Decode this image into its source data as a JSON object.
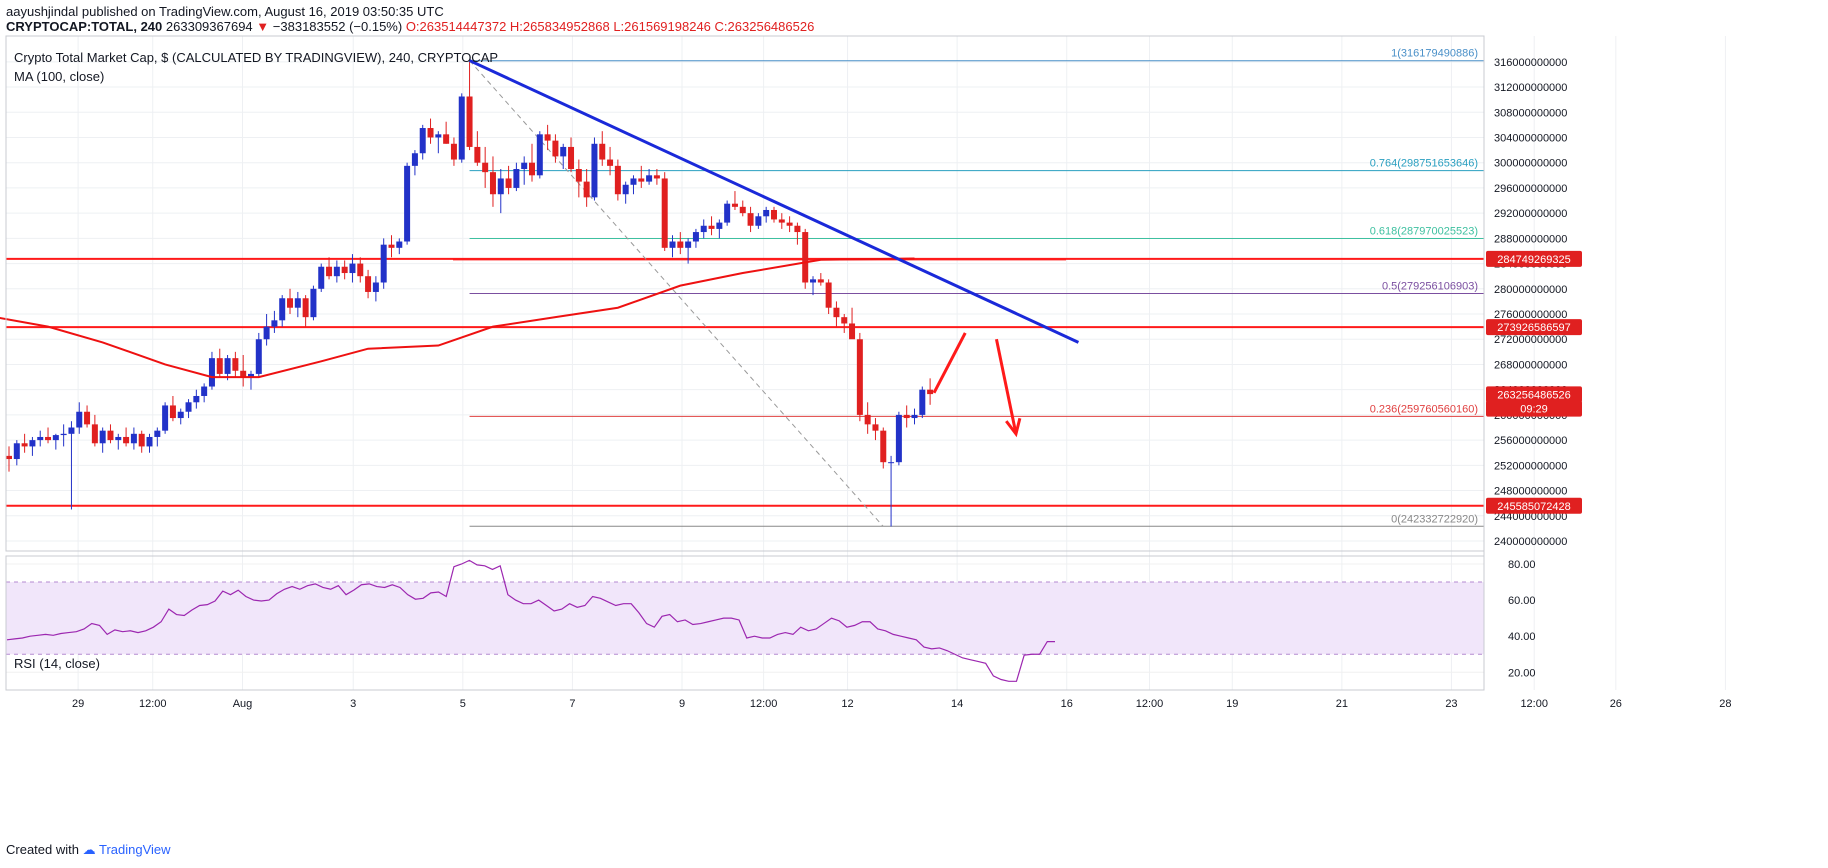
{
  "header": {
    "published": "aayushjindal published on TradingView.com, August 16, 2019 03:50:35 UTC",
    "symbol": "CRYPTOCAP:TOTAL, 240",
    "last": "263309367694",
    "change_arrow": "▼",
    "change": "−383183552 (−0.15%)",
    "open": "O:263514447372",
    "high": "H:265834952868",
    "low": "L:261569198246",
    "close": "C:263256486526"
  },
  "footer": {
    "created_with": "Created with",
    "brand": "TradingView"
  },
  "colors": {
    "bull": "#2232c8",
    "bear": "#e02020",
    "ma": "#ee1111",
    "trend": "#1a29d9",
    "rsi": "#9c27b0",
    "rsi_band": "#f1e6fa"
  },
  "chart_data": {
    "type": "candlestick",
    "title": "Crypto Total Market Cap, $ (CALCULATED BY TRADINGVIEW), 240, CRYPTOCAP",
    "indicator_label": "MA (100, close)",
    "ylim": [
      238000000000,
      318000000000
    ],
    "y_ticks": [
      "316000000000",
      "312000000000",
      "308000000000",
      "304000000000",
      "300000000000",
      "296000000000",
      "292000000000",
      "288000000000",
      "284000000000",
      "280000000000",
      "276000000000",
      "272000000000",
      "268000000000",
      "264000000000",
      "260000000000",
      "256000000000",
      "252000000000",
      "248000000000",
      "244000000000",
      "240000000000"
    ],
    "x_ticks": [
      "29",
      "12:00",
      "Aug",
      "3",
      "5",
      "7",
      "9",
      "12:00",
      "12",
      "14",
      "16",
      "12:00",
      "19",
      "21",
      "23",
      "12:00",
      "26",
      "28"
    ],
    "price_badges": [
      {
        "label": "284749269325",
        "value": 284749269325,
        "color": "#e02020"
      },
      {
        "label": "273926586597",
        "value": 273926586597,
        "color": "#e02020"
      },
      {
        "label": "263256486526",
        "value": 263256486526,
        "color": "#e02020"
      },
      {
        "label": "09:29",
        "value": 261000000000,
        "color": "#e02020"
      },
      {
        "label": "245585072428",
        "value": 245585072428,
        "color": "#e02020"
      }
    ],
    "fib_levels": [
      {
        "label": "1(316179490886)",
        "value": 316179490886,
        "color": "#4a90c8"
      },
      {
        "label": "0.764(298751653646)",
        "value": 298751653646,
        "color": "#2a9fc0"
      },
      {
        "label": "0.618(287970025523)",
        "value": 287970025523,
        "color": "#3ec0a0"
      },
      {
        "label": "0.5(279256106903)",
        "value": 279256106903,
        "color": "#7b4fa0"
      },
      {
        "label": "0.236(259760560160)",
        "value": 259760560160,
        "color": "#e04040"
      },
      {
        "label": "0(242332722920)",
        "value": 242332722920,
        "color": "#888888"
      }
    ],
    "horizontal_lines": [
      284749269325,
      273926586597,
      245585072428
    ],
    "ohlc": [
      [
        253.5,
        255.0,
        251.0,
        253.0
      ],
      [
        253.0,
        256.0,
        252.0,
        255.5
      ],
      [
        255.5,
        257.0,
        254.0,
        255.0
      ],
      [
        255.0,
        256.5,
        253.5,
        256.0
      ],
      [
        256.0,
        257.5,
        255.0,
        256.5
      ],
      [
        256.5,
        258.0,
        255.5,
        256.0
      ],
      [
        256.0,
        257.0,
        254.5,
        256.8
      ],
      [
        256.8,
        258.5,
        255.0,
        257.0
      ],
      [
        257.0,
        259.0,
        245.0,
        258.0
      ],
      [
        258.0,
        262.0,
        257.0,
        260.5
      ],
      [
        260.5,
        261.5,
        258.0,
        258.5
      ],
      [
        258.5,
        260.0,
        255.0,
        255.5
      ],
      [
        255.5,
        258.0,
        254.0,
        257.5
      ],
      [
        257.5,
        258.5,
        255.5,
        256.0
      ],
      [
        256.0,
        257.0,
        254.5,
        256.5
      ],
      [
        256.5,
        258.0,
        255.0,
        255.5
      ],
      [
        255.5,
        258.0,
        254.5,
        257.0
      ],
      [
        257.0,
        257.5,
        254.0,
        255.0
      ],
      [
        255.0,
        257.0,
        254.0,
        256.5
      ],
      [
        256.5,
        258.0,
        255.0,
        257.5
      ],
      [
        257.5,
        262.0,
        257.0,
        261.5
      ],
      [
        261.5,
        263.0,
        259.0,
        259.5
      ],
      [
        259.5,
        261.0,
        258.5,
        260.5
      ],
      [
        260.5,
        262.5,
        259.5,
        262.0
      ],
      [
        262.0,
        264.0,
        261.0,
        263.0
      ],
      [
        263.0,
        265.0,
        262.0,
        264.5
      ],
      [
        264.5,
        270.0,
        264.0,
        269.0
      ],
      [
        269.0,
        270.5,
        266.0,
        266.5
      ],
      [
        266.5,
        269.5,
        265.5,
        269.0
      ],
      [
        269.0,
        270.0,
        266.0,
        267.0
      ],
      [
        267.0,
        269.5,
        264.5,
        266.0
      ],
      [
        266.0,
        267.0,
        264.0,
        266.5
      ],
      [
        266.5,
        273.0,
        266.0,
        272.0
      ],
      [
        272.0,
        276.0,
        271.0,
        274.0
      ],
      [
        274.0,
        276.5,
        273.0,
        275.0
      ],
      [
        275.0,
        279.0,
        274.0,
        278.5
      ],
      [
        278.5,
        280.0,
        276.0,
        277.0
      ],
      [
        277.0,
        279.5,
        275.5,
        278.5
      ],
      [
        278.5,
        279.0,
        274.0,
        275.5
      ],
      [
        275.5,
        280.5,
        275.0,
        280.0
      ],
      [
        280.0,
        284.0,
        279.5,
        283.5
      ],
      [
        283.5,
        285.0,
        281.5,
        282.0
      ],
      [
        282.0,
        284.5,
        281.0,
        283.5
      ],
      [
        283.5,
        284.5,
        281.5,
        282.5
      ],
      [
        282.5,
        285.5,
        281.0,
        284.0
      ],
      [
        284.0,
        285.0,
        281.0,
        282.0
      ],
      [
        282.0,
        283.0,
        278.5,
        279.5
      ],
      [
        279.5,
        282.0,
        278.0,
        281.0
      ],
      [
        281.0,
        288.0,
        280.0,
        287.0
      ],
      [
        287.0,
        288.5,
        285.0,
        286.5
      ],
      [
        286.5,
        288.0,
        285.5,
        287.5
      ],
      [
        287.5,
        300.0,
        287.0,
        299.5
      ],
      [
        299.5,
        302.0,
        298.0,
        301.5
      ],
      [
        301.5,
        306.0,
        300.5,
        305.5
      ],
      [
        305.5,
        307.0,
        303.0,
        304.0
      ],
      [
        304.0,
        305.0,
        301.5,
        304.5
      ],
      [
        304.5,
        306.5,
        303.0,
        303.0
      ],
      [
        303.0,
        304.0,
        299.5,
        300.5
      ],
      [
        300.5,
        311.0,
        300.0,
        310.5
      ],
      [
        310.5,
        316.0,
        302.0,
        302.5
      ],
      [
        302.5,
        305.0,
        299.5,
        300.0
      ],
      [
        300.0,
        302.5,
        296.0,
        298.5
      ],
      [
        298.5,
        301.0,
        293.0,
        295.0
      ],
      [
        295.0,
        299.0,
        292.0,
        297.5
      ],
      [
        297.5,
        299.5,
        295.0,
        296.0
      ],
      [
        296.0,
        300.0,
        295.5,
        299.0
      ],
      [
        299.0,
        301.0,
        296.5,
        300.0
      ],
      [
        300.0,
        303.0,
        297.0,
        298.0
      ],
      [
        298.0,
        305.0,
        297.5,
        304.5
      ],
      [
        304.5,
        306.0,
        302.0,
        303.5
      ],
      [
        303.5,
        304.5,
        300.0,
        301.0
      ],
      [
        301.0,
        303.0,
        299.0,
        302.5
      ],
      [
        302.5,
        304.0,
        298.5,
        299.0
      ],
      [
        299.0,
        300.5,
        294.5,
        297.0
      ],
      [
        297.0,
        299.0,
        293.0,
        294.5
      ],
      [
        294.5,
        304.0,
        294.0,
        303.0
      ],
      [
        303.0,
        305.0,
        299.5,
        300.5
      ],
      [
        300.5,
        302.5,
        298.0,
        299.5
      ],
      [
        299.5,
        300.5,
        294.0,
        295.0
      ],
      [
        295.0,
        297.0,
        293.5,
        296.5
      ],
      [
        296.5,
        298.0,
        295.0,
        297.5
      ],
      [
        297.5,
        299.5,
        296.0,
        297.0
      ],
      [
        297.0,
        299.0,
        296.5,
        298.0
      ],
      [
        298.0,
        299.0,
        296.5,
        297.5
      ],
      [
        297.5,
        298.5,
        286.0,
        286.5
      ],
      [
        286.5,
        288.5,
        285.0,
        287.5
      ],
      [
        287.5,
        289.0,
        285.5,
        286.5
      ],
      [
        286.5,
        288.0,
        284.0,
        287.5
      ],
      [
        287.5,
        289.5,
        286.5,
        289.0
      ],
      [
        289.0,
        291.0,
        288.0,
        290.0
      ],
      [
        290.0,
        291.5,
        288.5,
        289.5
      ],
      [
        289.5,
        291.0,
        288.0,
        290.5
      ],
      [
        290.5,
        294.0,
        290.0,
        293.5
      ],
      [
        293.5,
        295.5,
        292.5,
        293.0
      ],
      [
        293.0,
        294.0,
        291.5,
        292.0
      ],
      [
        292.0,
        293.0,
        289.0,
        290.0
      ],
      [
        290.0,
        292.0,
        289.5,
        291.5
      ],
      [
        291.5,
        293.0,
        290.5,
        292.5
      ],
      [
        292.5,
        293.0,
        290.5,
        291.0
      ],
      [
        291.0,
        292.0,
        289.5,
        290.5
      ],
      [
        290.5,
        291.5,
        289.0,
        290.0
      ],
      [
        290.0,
        290.5,
        287.0,
        289.0
      ],
      [
        289.0,
        289.5,
        280.0,
        281.0
      ],
      [
        281.0,
        282.0,
        279.0,
        281.5
      ],
      [
        281.5,
        282.5,
        280.5,
        281.0
      ],
      [
        281.0,
        281.5,
        276.0,
        277.0
      ],
      [
        277.0,
        278.0,
        274.0,
        275.5
      ],
      [
        275.5,
        276.0,
        273.0,
        274.5
      ],
      [
        274.5,
        277.0,
        273.5,
        272.0
      ],
      [
        272.0,
        273.0,
        259.0,
        260.0
      ],
      [
        260.0,
        262.0,
        257.0,
        258.5
      ],
      [
        258.5,
        259.5,
        256.0,
        257.5
      ],
      [
        257.5,
        258.0,
        251.5,
        252.5
      ],
      [
        252.5,
        253.5,
        242.3,
        252.5
      ],
      [
        252.5,
        260.5,
        252.0,
        260.0
      ],
      [
        260.0,
        261.5,
        258.0,
        259.5
      ],
      [
        259.5,
        261.0,
        258.5,
        260.0
      ],
      [
        260.0,
        264.5,
        259.5,
        264.0
      ],
      [
        264.0,
        265.8,
        261.6,
        263.3
      ]
    ],
    "ma": [
      [
        -4,
        276.0
      ],
      [
        5,
        274.0
      ],
      [
        12,
        271.5
      ],
      [
        20,
        268.0
      ],
      [
        26,
        266.0
      ],
      [
        32,
        266.0
      ],
      [
        40,
        268.5
      ],
      [
        46,
        270.5
      ],
      [
        55,
        271.0
      ],
      [
        62,
        274.0
      ],
      [
        70,
        275.5
      ],
      [
        78,
        277.0
      ],
      [
        86,
        280.5
      ],
      [
        94,
        282.5
      ],
      [
        104,
        284.6
      ],
      [
        116,
        284.8
      ]
    ],
    "trendline": [
      [
        59,
        316.2
      ],
      [
        137,
        271.5
      ]
    ],
    "fib_anchor": [
      [
        59,
        316.2
      ],
      [
        112,
        242.3
      ]
    ],
    "arrows": [
      {
        "from": [
          118.5,
          263.5
        ],
        "to": [
          122.5,
          273.0
        ]
      },
      {
        "from": [
          126.5,
          272.0
        ],
        "to": [
          129.0,
          257.0
        ]
      }
    ],
    "rsi": {
      "label": "RSI (14, close)",
      "ylim": [
        10,
        90
      ],
      "y_ticks": [
        "80.00",
        "60.00",
        "40.00",
        "20.00"
      ],
      "band": [
        30,
        70
      ],
      "values": [
        38,
        38.5,
        39,
        40,
        40.5,
        41,
        40.5,
        41.5,
        42,
        42.5,
        44,
        47,
        46,
        41,
        43.5,
        42.5,
        43,
        42,
        43,
        45,
        48,
        55,
        52,
        51.5,
        54.5,
        57,
        57.5,
        59.5,
        65,
        63,
        65.5,
        62,
        60,
        59.5,
        60,
        63.5,
        66,
        67.5,
        66,
        68,
        69,
        67,
        66,
        68,
        63,
        65.5,
        68.5,
        69,
        67.5,
        67,
        68.5,
        67,
        63,
        60.5,
        61,
        64,
        64.5,
        62,
        78.5,
        80,
        82,
        79.5,
        79,
        77,
        79,
        63,
        60,
        58,
        58,
        60,
        57,
        54,
        55,
        58,
        56,
        57,
        62,
        61,
        59,
        57,
        58,
        58,
        53,
        47,
        45,
        51,
        52,
        48,
        49,
        46.5,
        47,
        48,
        49,
        50,
        50,
        49,
        39,
        40,
        39,
        39,
        41,
        42,
        41,
        45,
        43,
        44,
        47,
        50,
        48.5,
        45,
        46,
        48,
        48,
        44,
        43,
        41,
        40,
        39,
        38,
        34,
        33,
        33.5,
        32,
        30,
        28,
        27,
        26,
        25,
        18,
        16,
        15,
        15,
        29.5,
        30,
        30,
        37,
        37
      ],
      "shift": 33
    }
  }
}
